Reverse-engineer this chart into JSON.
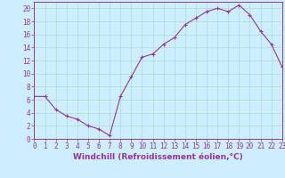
{
  "x": [
    0,
    1,
    2,
    3,
    4,
    5,
    6,
    7,
    8,
    9,
    10,
    11,
    12,
    13,
    14,
    15,
    16,
    17,
    18,
    19,
    20,
    21,
    22,
    23
  ],
  "y": [
    6.5,
    6.5,
    4.5,
    3.5,
    3.0,
    2.0,
    1.5,
    0.5,
    6.5,
    9.5,
    12.5,
    13.0,
    14.5,
    15.5,
    17.5,
    18.5,
    19.5,
    20.0,
    19.5,
    20.5,
    19.0,
    16.5,
    14.5,
    11.0
  ],
  "line_color": "#993399",
  "marker": "+",
  "marker_size": 3,
  "bg_color": "#cceeff",
  "grid_color": "#aaddcc",
  "axis_color": "#993399",
  "xlabel": "Windchill (Refroidissement éolien,°C)",
  "xlim": [
    0,
    23
  ],
  "ylim": [
    0,
    21
  ],
  "yticks": [
    0,
    2,
    4,
    6,
    8,
    10,
    12,
    14,
    16,
    18,
    20
  ],
  "xticks": [
    0,
    1,
    2,
    3,
    4,
    5,
    6,
    7,
    8,
    9,
    10,
    11,
    12,
    13,
    14,
    15,
    16,
    17,
    18,
    19,
    20,
    21,
    22,
    23
  ],
  "tick_fontsize": 5.5,
  "label_fontsize": 6.5
}
